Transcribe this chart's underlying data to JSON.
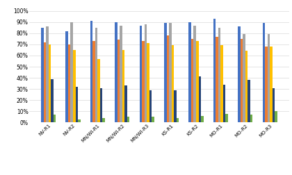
{
  "categories": [
    "NV-R1",
    "NV-R2",
    "MN/Wi-R1",
    "MN/Wi-R2",
    "MN/WI-R3",
    "KS-R1",
    "KS-R2",
    "MO-R1",
    "MO-R2",
    "MO-R3"
  ],
  "series": {
    "Traffic": [
      0.85,
      0.82,
      0.91,
      0.9,
      0.87,
      0.89,
      0.9,
      0.93,
      0.86,
      0.89
    ],
    "Safety-related": [
      0.72,
      0.7,
      0.73,
      0.74,
      0.73,
      0.78,
      0.75,
      0.77,
      0.75,
      0.68
    ],
    "Weather": [
      0.86,
      0.9,
      0.85,
      0.87,
      0.88,
      0.89,
      0.87,
      0.85,
      0.79,
      0.79
    ],
    "Missing Person": [
      0.7,
      0.65,
      0.57,
      0.65,
      0.71,
      0.69,
      0.73,
      0.69,
      0.64,
      0.68
    ],
    "Other": [
      0.39,
      0.32,
      0.31,
      0.33,
      0.29,
      0.29,
      0.41,
      0.34,
      0.38,
      0.31
    ],
    "Only Traffic": [
      0.07,
      0.03,
      0.04,
      0.05,
      0.05,
      0.04,
      0.06,
      0.08,
      0.07,
      0.1
    ]
  },
  "colors": {
    "Traffic": "#4472C4",
    "Safety-related": "#ED7D31",
    "Weather": "#A5A5A5",
    "Missing Person": "#FFC000",
    "Other": "#264478",
    "Only Traffic": "#70AD47"
  },
  "ylim": [
    0,
    1.05
  ],
  "yticks": [
    0,
    0.1,
    0.2,
    0.3,
    0.4,
    0.5,
    0.6,
    0.7,
    0.8,
    0.9,
    1.0
  ],
  "yticklabels": [
    "0%",
    "10%",
    "20%",
    "30%",
    "40%",
    "50%",
    "60%",
    "70%",
    "80%",
    "90%",
    "100%"
  ],
  "background_color": "#FFFFFF",
  "gridcolor": "#D9D9D9",
  "bar_width": 0.1,
  "figsize": [
    4.2,
    2.52
  ],
  "dpi": 100
}
